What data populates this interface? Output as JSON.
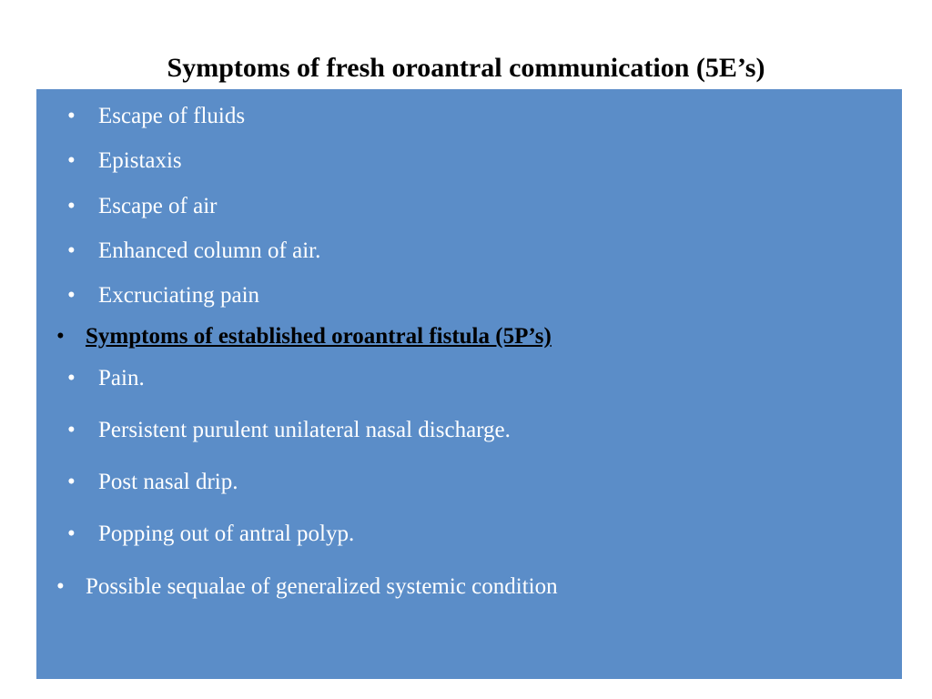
{
  "slide": {
    "title": "Symptoms of fresh oroantral communication (5E’s)",
    "title_color": "#000000",
    "title_fontsize": 30,
    "content_bg": "#5b8dc8",
    "bullet_color_white": "#ffffff",
    "bullet_color_black": "#000000",
    "body_fontsize": 25,
    "items": [
      {
        "text": "Escape of fluids",
        "color": "white",
        "spacing": 18
      },
      {
        "text": "Epistaxis",
        "color": "white",
        "spacing": 18
      },
      {
        "text": "Escape of air",
        "color": "white",
        "spacing": 18
      },
      {
        "text": "Enhanced column of air.",
        "color": "white",
        "spacing": 18
      },
      {
        "text": "Excruciating pain",
        "color": "white",
        "spacing": 14
      },
      {
        "text": "Symptoms of established oroantral fistula (5P’s)",
        "color": "black",
        "sub": true,
        "heading": true,
        "spacing": 14
      },
      {
        "text": "Pain.",
        "color": "white",
        "spacing": 26
      },
      {
        "text": "Persistent purulent unilateral nasal discharge.",
        "color": "white",
        "spacing": 26
      },
      {
        "text": "Post nasal drip.",
        "color": "white",
        "spacing": 26
      },
      {
        "text": "Popping out of antral polyp.",
        "color": "white",
        "spacing": 26
      },
      {
        "text": "Possible sequalae of generalized  systemic condition",
        "color": "white",
        "sub": true,
        "spacing": 0
      }
    ]
  }
}
